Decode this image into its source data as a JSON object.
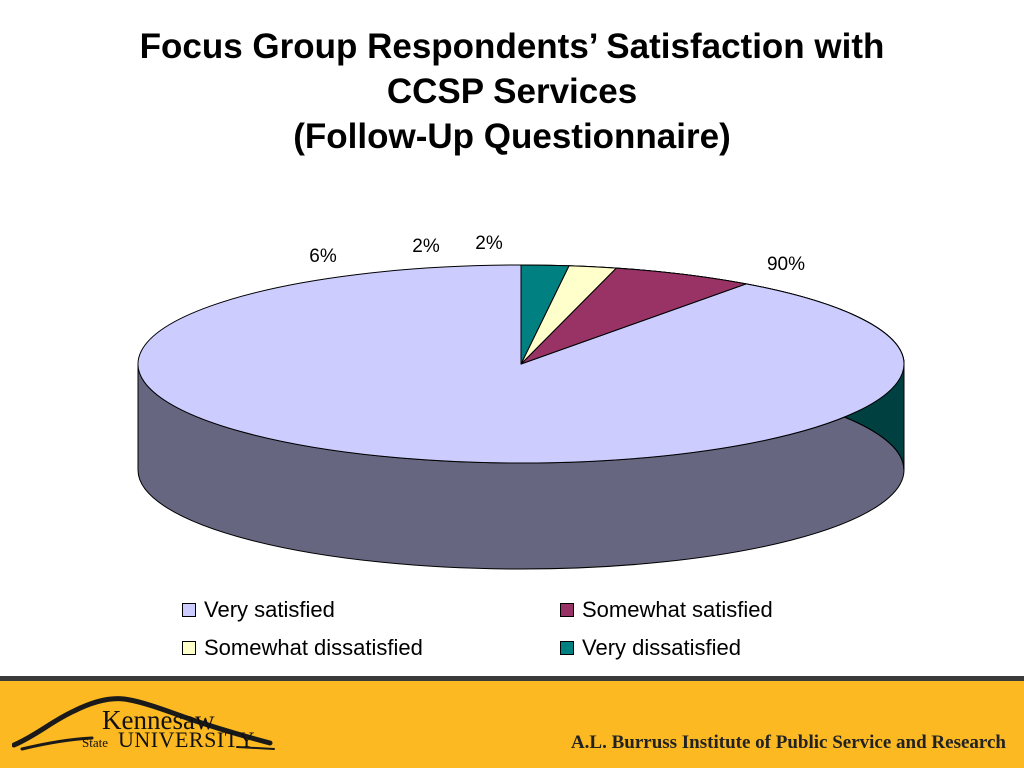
{
  "slide": {
    "title_lines": [
      "Focus Group Respondents’ Satisfaction with",
      "CCSP Services",
      "(Follow-Up Questionnaire)"
    ]
  },
  "chart_data": {
    "type": "pie",
    "style": "3d",
    "legend_position": "bottom",
    "categories": [
      "Very satisfied",
      "Somewhat satisfied",
      "Somewhat dissatisfied",
      "Very dissatisfied"
    ],
    "values": [
      90,
      6,
      2,
      2
    ],
    "data_labels": [
      "90%",
      "6%",
      "2%",
      "2%"
    ],
    "colors": [
      "#ccccff",
      "#993366",
      "#ffffcc",
      "#008080"
    ]
  },
  "footer": {
    "logo_text_top": "Kennesaw",
    "logo_text_state": "State",
    "logo_text_bottom": "UNIVERSITY",
    "institute": "A.L. Burruss Institute of Public Service and Research",
    "colors": {
      "band": "#fcb921",
      "divider": "#3a3a3a"
    }
  }
}
